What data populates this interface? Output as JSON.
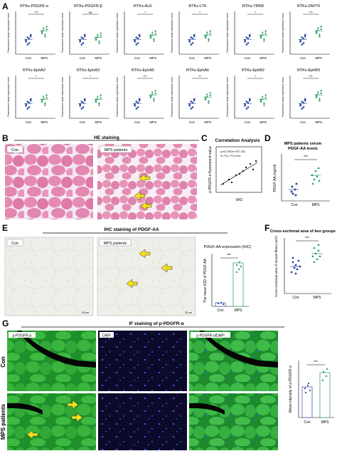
{
  "panel_letters": {
    "a": "A",
    "b": "B",
    "c": "C",
    "d": "D",
    "e": "E",
    "f": "F",
    "g": "G"
  },
  "common": {
    "ylabel": "Fluorescent value expression level",
    "con": "Con",
    "mps": "MPS",
    "con_color": "#2d4aa0",
    "mps_color": "#229a5a"
  },
  "panel_a": {
    "charts": [
      {
        "title": "RTKs-PDGFR-α",
        "sig": "***"
      },
      {
        "title": "RTKs-PDGFR-β",
        "sig": "ns"
      },
      {
        "title": "RTKs-ALK",
        "sig": "*"
      },
      {
        "title": "RTKs-LTK",
        "sig": "*"
      },
      {
        "title": "RTKs-TRKB",
        "sig": "*"
      },
      {
        "title": "RTKs-ZAP70",
        "sig": "***"
      },
      {
        "title": "RTKs-EphA2",
        "sig": "*"
      },
      {
        "title": "RTKs-EphA3",
        "sig": "*"
      },
      {
        "title": "RTKs-EphA5",
        "sig": "***"
      },
      {
        "title": "RTKs-EphA6",
        "sig": "**"
      },
      {
        "title": "RTKs-EphB2",
        "sig": "*"
      },
      {
        "title": "RTKs-EphB3",
        "sig": "***"
      }
    ]
  },
  "panel_b": {
    "header": "HE staining",
    "labels": [
      "Con",
      "MPS patients"
    ]
  },
  "panel_c": {
    "title": "Correlation Analysis",
    "ylabel": "p-PDGFR-α fluorescent value",
    "xlabel": "VAS",
    "eq1": "y=67.092x+767.201",
    "eq2": "r0.711, P=0.014"
  },
  "panel_d": {
    "title1": "MPS patients serum",
    "title2": "PDGF-AA levels",
    "ylabel": "PDGF-AA (ng/ml)",
    "sig": "***"
  },
  "panel_e": {
    "header": "IHC staining of PDGF-AA",
    "labels": [
      "Con",
      "MPS patients"
    ],
    "scale": "20 um",
    "bar_title": "PDGF-AA expression (IHC)",
    "ylabel": "The mean IOD of PDGF-AA",
    "sig": "***"
  },
  "panel_f": {
    "title": "Cross-sectional area of two groups",
    "ylabel": "Cross-sectional area of muscle fibers (um²)",
    "sig": "***"
  },
  "panel_g": {
    "header": "IF staining of p-PDGFR-α",
    "col_labels": [
      "p-PDGFR-α",
      "DAPI",
      "p-PDGFR-α/DAPI"
    ],
    "row_labels": [
      "Con",
      "MPS patients"
    ],
    "ylabel": "Mean intensity of p-PDGFR-α",
    "sig": "***"
  }
}
